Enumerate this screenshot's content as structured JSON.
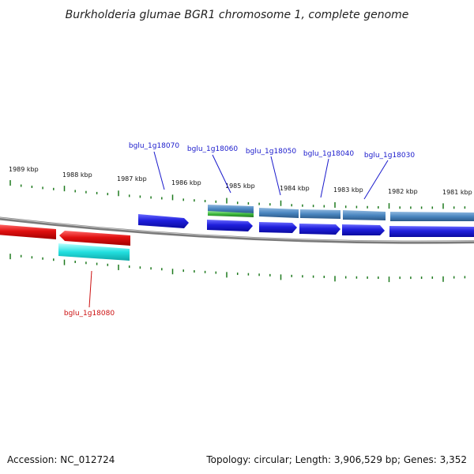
{
  "title": "Burkholderia glumae BGR1 chromosome 1, complete genome",
  "footer": {
    "accession": "Accession: NC_012724",
    "topology": "Topology: circular; Length: 3,906,529 bp; Genes: 3,352"
  },
  "ruler": {
    "unit": "kbp",
    "labels": [
      "1989 kbp",
      "1988 kbp",
      "1987 kbp",
      "1986 kbp",
      "1985 kbp",
      "1984 kbp",
      "1983 kbp",
      "1982 kbp",
      "1981 kbp"
    ]
  },
  "gene_labels": {
    "bglu_1g18070": "bglu_1g18070",
    "bglu_1g18060": "bglu_1g18060",
    "bglu_1g18050": "bglu_1g18050",
    "bglu_1g18040": "bglu_1g18040",
    "bglu_1g18030": "bglu_1g18030",
    "bglu_1g18080": "bglu_1g18080"
  },
  "colors": {
    "forward_gene": "#1f1fdc",
    "reverse_gene": "#e01010",
    "reverse_cds": "#22e0e0",
    "forward_cds": "#4a86c0",
    "rna_feature": "#3cb83c",
    "label_blue": "#1a1acc",
    "label_red": "#cc1010",
    "ruler_tick": "#1e7a1e",
    "backbone": "#7a7a7a"
  }
}
